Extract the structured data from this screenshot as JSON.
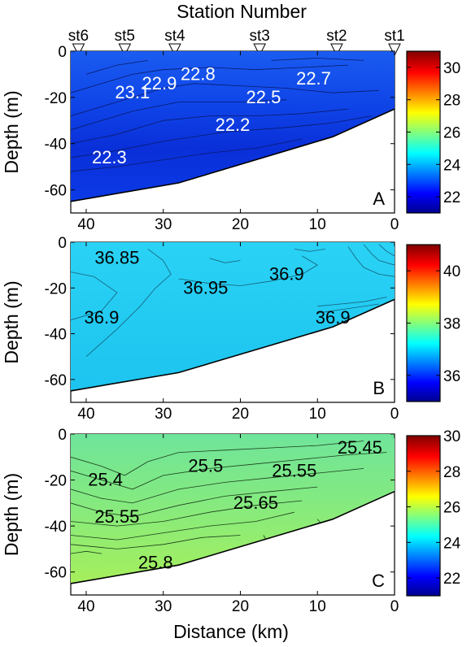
{
  "figure": {
    "title": "Station Number",
    "x_axis_label": "Distance (km)",
    "stations": [
      {
        "name": "st6",
        "distance_km": 41
      },
      {
        "name": "st5",
        "distance_km": 35
      },
      {
        "name": "st4",
        "distance_km": 28.5
      },
      {
        "name": "st3",
        "distance_km": 17.5
      },
      {
        "name": "st2",
        "distance_km": 7.5
      },
      {
        "name": "st1",
        "distance_km": 0
      }
    ]
  },
  "chart_data": [
    {
      "type": "heatmap",
      "panel_label": "A",
      "title": "",
      "xlabel": "",
      "ylabel": "Depth (m)",
      "xlim": [
        42,
        0
      ],
      "ylim": [
        -70,
        0
      ],
      "x_ticks": [
        "40",
        "30",
        "20",
        "10",
        "0"
      ],
      "y_ticks": [
        "0",
        "-20",
        "-40",
        "-60"
      ],
      "bottom_profile": [
        [
          42,
          -65
        ],
        [
          28,
          -57
        ],
        [
          8,
          -37
        ],
        [
          0,
          -25
        ]
      ],
      "fill_color": "#0f40e6",
      "colorbar": {
        "min": 21,
        "max": 31,
        "ticks": [
          "30",
          "28",
          "26",
          "24",
          "22"
        ]
      },
      "contour_labels": [
        {
          "text": "23.1",
          "x": 34,
          "y": -18
        },
        {
          "text": "22.9",
          "x": 30.5,
          "y": -14
        },
        {
          "text": "22.8",
          "x": 25.5,
          "y": -10
        },
        {
          "text": "22.7",
          "x": 10.5,
          "y": -12
        },
        {
          "text": "22.5",
          "x": 17,
          "y": -20
        },
        {
          "text": "22.2",
          "x": 21,
          "y": -32
        },
        {
          "text": "22.3",
          "x": 37,
          "y": -46
        }
      ]
    },
    {
      "type": "heatmap",
      "panel_label": "B",
      "title": "",
      "xlabel": "",
      "ylabel": "Depth (m)",
      "xlim": [
        42,
        0
      ],
      "ylim": [
        -70,
        0
      ],
      "x_ticks": [
        "40",
        "30",
        "20",
        "10",
        "0"
      ],
      "y_ticks": [
        "0",
        "-20",
        "-40",
        "-60"
      ],
      "bottom_profile": [
        [
          42,
          -65
        ],
        [
          28,
          -57
        ],
        [
          8,
          -37
        ],
        [
          0,
          -25
        ]
      ],
      "fill_color": "#1ec8f0",
      "colorbar": {
        "min": 35,
        "max": 41,
        "ticks": [
          "40",
          "38",
          "36"
        ]
      },
      "contour_labels": [
        {
          "text": "36.85",
          "x": 36,
          "y": -7
        },
        {
          "text": "36.95",
          "x": 24.5,
          "y": -20
        },
        {
          "text": "36.9",
          "x": 14,
          "y": -14
        },
        {
          "text": "36.9",
          "x": 38,
          "y": -33
        },
        {
          "text": "36.9",
          "x": 8,
          "y": -33
        }
      ]
    },
    {
      "type": "heatmap",
      "panel_label": "C",
      "title": "",
      "xlabel": "Distance (km)",
      "ylabel": "Depth (m)",
      "xlim": [
        42,
        0
      ],
      "ylim": [
        -70,
        0
      ],
      "x_ticks": [
        "40",
        "30",
        "20",
        "10",
        "0"
      ],
      "y_ticks": [
        "0",
        "-20",
        "-40",
        "-60"
      ],
      "bottom_profile": [
        [
          42,
          -65
        ],
        [
          28,
          -57
        ],
        [
          8,
          -37
        ],
        [
          0,
          -25
        ]
      ],
      "fill_color": "#8ee878",
      "colorbar": {
        "min": 21,
        "max": 30,
        "ticks": [
          "30",
          "28",
          "26",
          "24",
          "22"
        ]
      },
      "contour_labels": [
        {
          "text": "25.4",
          "x": 37.5,
          "y": -20
        },
        {
          "text": "25.5",
          "x": 24.5,
          "y": -14
        },
        {
          "text": "25.55",
          "x": 13,
          "y": -16
        },
        {
          "text": "25.45",
          "x": 4.5,
          "y": -6
        },
        {
          "text": "25.55",
          "x": 36,
          "y": -36
        },
        {
          "text": "25.65",
          "x": 18,
          "y": -30
        },
        {
          "text": "25.8",
          "x": 31,
          "y": -56
        }
      ]
    }
  ]
}
